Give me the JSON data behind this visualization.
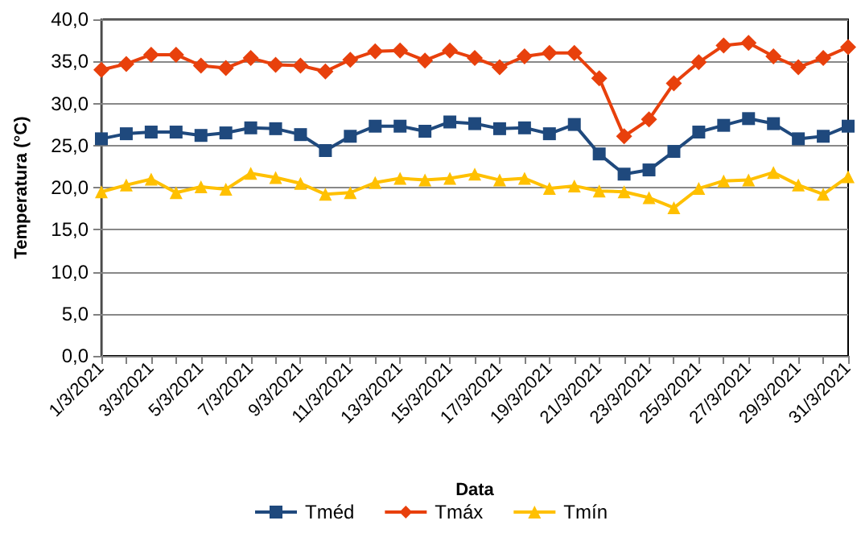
{
  "chart_data": {
    "type": "line",
    "xlabel": "Data",
    "ylabel": "Temperatura (°C)",
    "categories": [
      "1/3/2021",
      null,
      "3/3/2021",
      null,
      "5/3/2021",
      null,
      "7/3/2021",
      null,
      "9/3/2021",
      null,
      "11/3/2021",
      null,
      "13/3/2021",
      null,
      "15/3/2021",
      null,
      "17/3/2021",
      null,
      "19/3/2021",
      null,
      "21/3/2021",
      null,
      "23/3/2021",
      null,
      "25/3/2021",
      null,
      "27/3/2021",
      null,
      "29/3/2021",
      null,
      "31/3/2021"
    ],
    "series": [
      {
        "name": "Tméd",
        "color": "#1f497d",
        "marker": "square",
        "values": [
          25.8,
          26.4,
          26.6,
          26.6,
          26.2,
          26.5,
          27.1,
          27.0,
          26.3,
          24.4,
          26.1,
          27.3,
          27.3,
          26.7,
          27.8,
          27.6,
          27.0,
          27.1,
          26.4,
          27.5,
          24.0,
          21.6,
          22.1,
          24.3,
          26.6,
          27.4,
          28.2,
          27.6,
          25.8,
          26.1,
          27.3
        ]
      },
      {
        "name": "Tmáx",
        "color": "#e8400c",
        "marker": "diamond",
        "values": [
          34.0,
          34.7,
          35.8,
          35.8,
          34.5,
          34.2,
          35.4,
          34.6,
          34.5,
          33.8,
          35.2,
          36.2,
          36.3,
          35.1,
          36.3,
          35.4,
          34.3,
          35.6,
          36.0,
          36.0,
          33.0,
          26.1,
          28.1,
          32.4,
          34.9,
          36.9,
          37.2,
          35.6,
          34.3,
          35.4,
          36.7
        ]
      },
      {
        "name": "Tmín",
        "color": "#ffc000",
        "marker": "triangle",
        "values": [
          19.5,
          20.3,
          21.0,
          19.4,
          20.1,
          19.8,
          21.7,
          21.2,
          20.5,
          19.2,
          19.4,
          20.6,
          21.1,
          20.9,
          21.1,
          21.6,
          20.9,
          21.1,
          19.9,
          20.2,
          19.6,
          19.5,
          18.8,
          17.6,
          19.9,
          20.8,
          20.9,
          21.8,
          20.3,
          19.2,
          21.3
        ]
      }
    ],
    "ylim": [
      0,
      40
    ],
    "yticks": [
      {
        "value": 0,
        "label": "0,0"
      },
      {
        "value": 5,
        "label": "5,0"
      },
      {
        "value": 10,
        "label": "10,0"
      },
      {
        "value": 15,
        "label": "15,0"
      },
      {
        "value": 20,
        "label": "20,0"
      },
      {
        "value": 25,
        "label": "25,0"
      },
      {
        "value": 30,
        "label": "30,0"
      },
      {
        "value": 35,
        "label": "35,0"
      },
      {
        "value": 40,
        "label": "40,0"
      }
    ],
    "grid": "y",
    "legend": "bottom",
    "line_style": "solid"
  }
}
